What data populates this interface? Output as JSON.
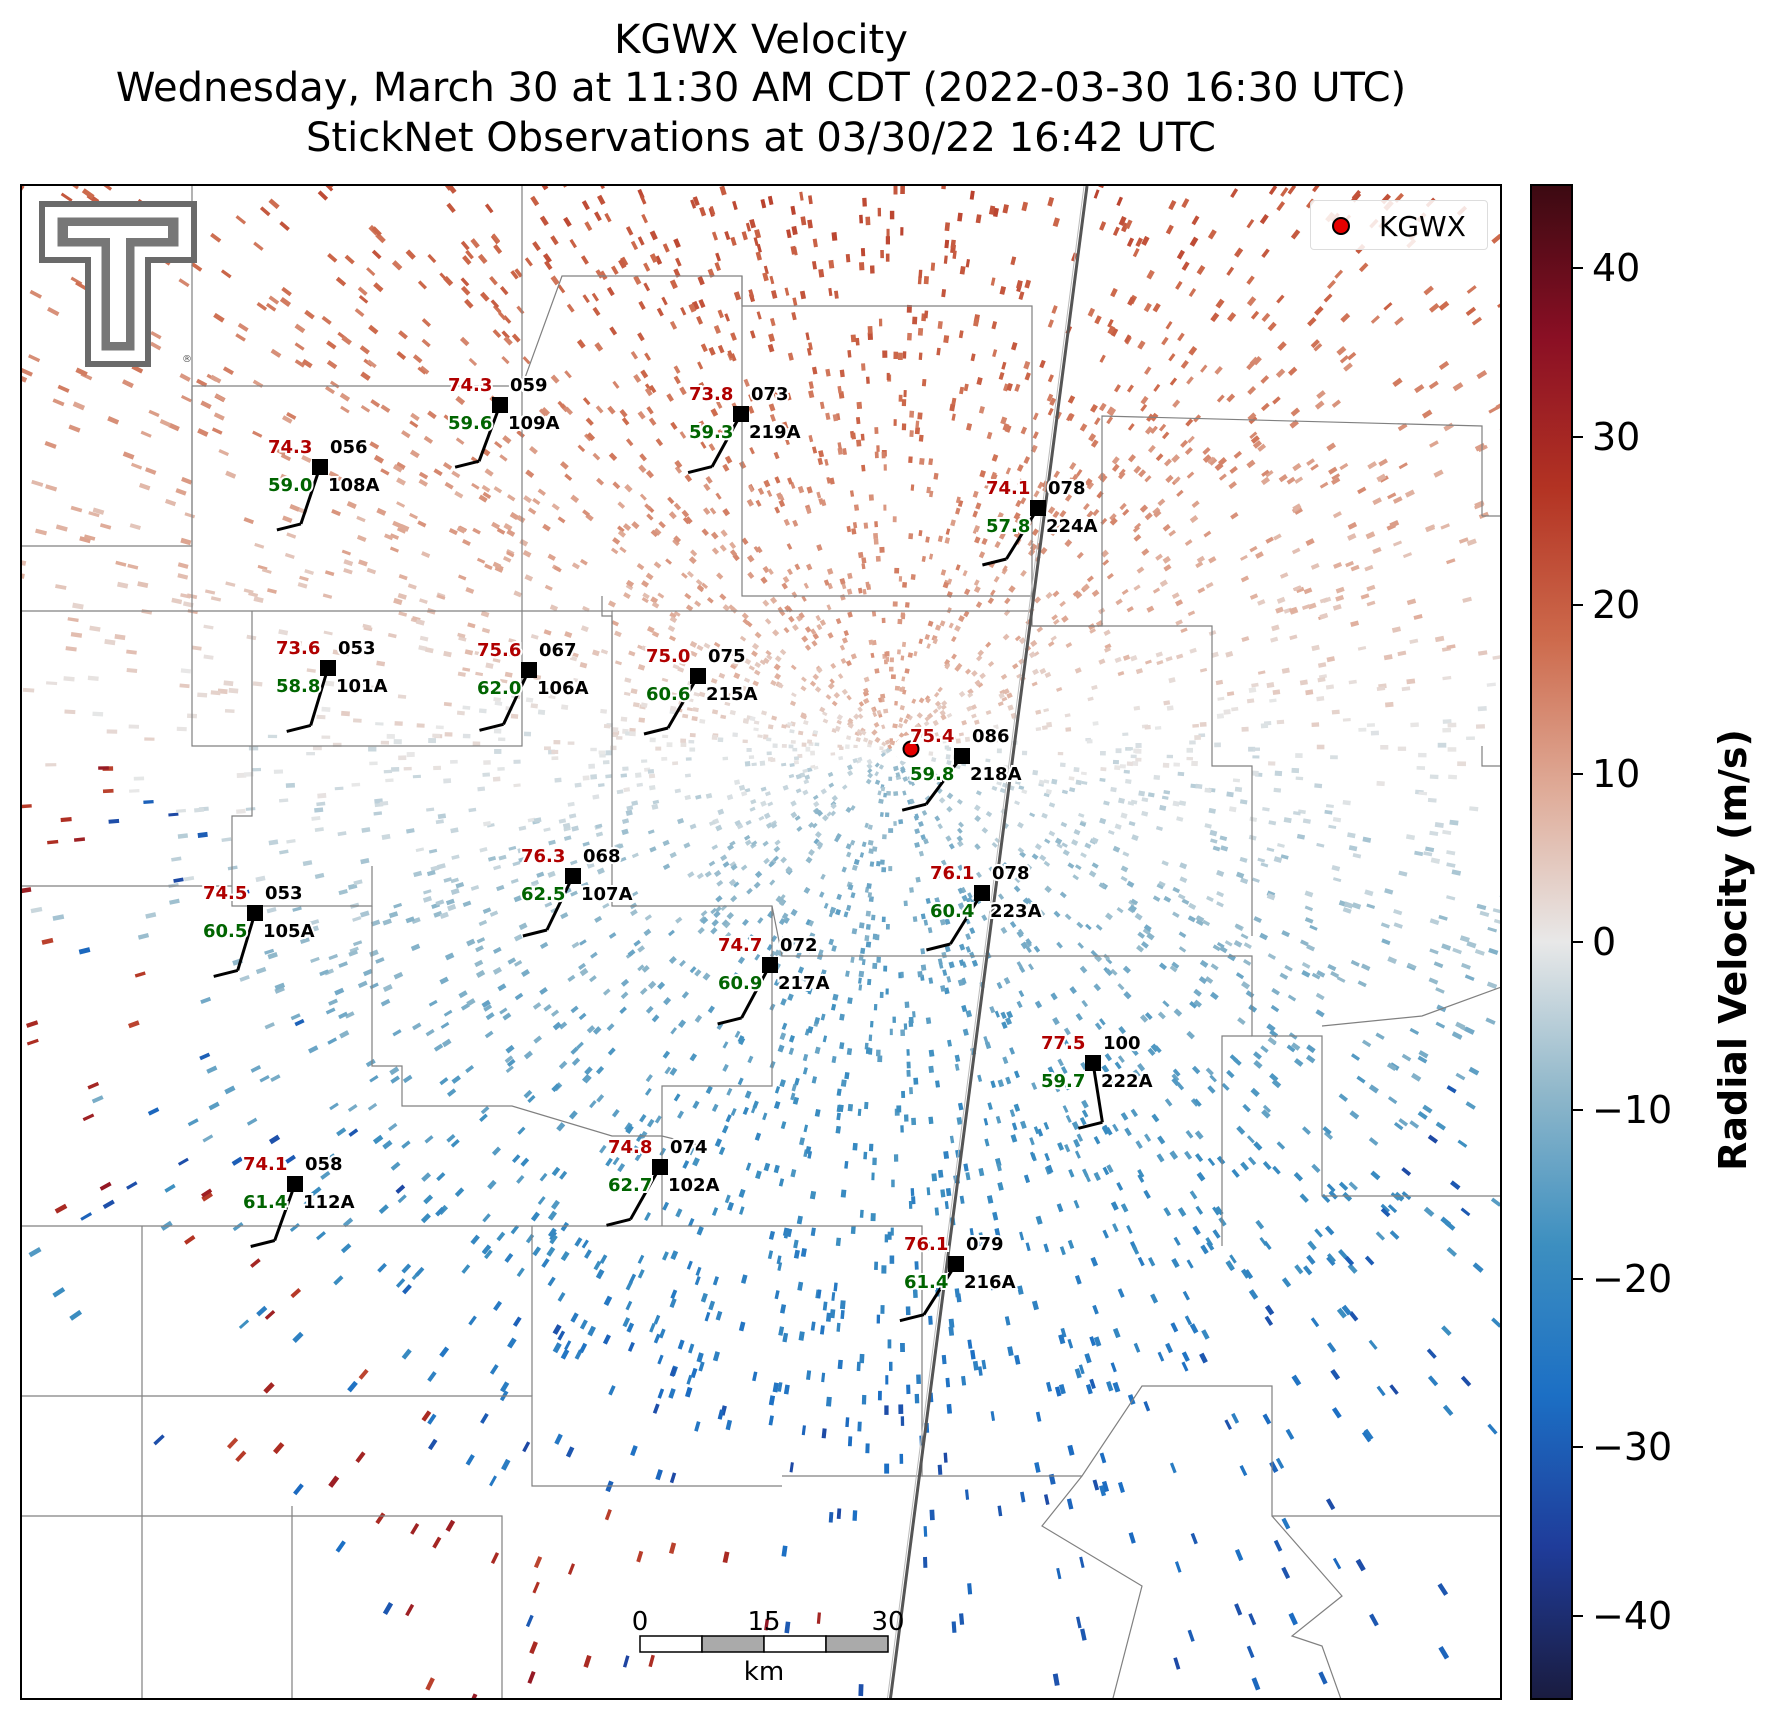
{
  "title": {
    "line1": "KGWX Velocity",
    "line2": "Wednesday, March 30 at 11:30 AM CDT (2022-03-30 16:30 UTC)",
    "line3": "StickNet Observations at 03/30/22 16:42 UTC"
  },
  "legend": {
    "label": "KGWX",
    "marker_color": "#e60000"
  },
  "colorbar": {
    "title": "Radial Velocity (m/s)",
    "min": -45,
    "max": 45,
    "ticks": [
      40,
      30,
      20,
      10,
      0,
      -10,
      -20,
      -30,
      -40
    ],
    "tick_labels": [
      "40",
      "30",
      "20",
      "10",
      "0",
      "−10",
      "−20",
      "−30",
      "−40"
    ],
    "colors": [
      "#1a1c40",
      "#1f3c9a",
      "#1c6fc4",
      "#3d8fc0",
      "#8fb7ca",
      "#e8e8e8",
      "#dfab98",
      "#cd6a4c",
      "#b33323",
      "#8a0f24",
      "#3c0a12"
    ]
  },
  "scale_bar": {
    "ticks": [
      "0",
      "15",
      "30"
    ],
    "unit": "km"
  },
  "logo": {
    "name": "Texas Tech Double T",
    "mark": "®"
  },
  "stations": [
    {
      "id": "109A",
      "temp": "74.3",
      "dew": "59.6",
      "dir": "059"
    },
    {
      "id": "219A",
      "temp": "73.8",
      "dew": "59.3",
      "dir": "073"
    },
    {
      "id": "108A",
      "temp": "74.3",
      "dew": "59.0",
      "dir": "056"
    },
    {
      "id": "224A",
      "temp": "74.1",
      "dew": "57.8",
      "dir": "078"
    },
    {
      "id": "101A",
      "temp": "73.6",
      "dew": "58.8",
      "dir": "053"
    },
    {
      "id": "106A",
      "temp": "75.6",
      "dew": "62.0",
      "dir": "067"
    },
    {
      "id": "215A",
      "temp": "75.0",
      "dew": "60.6",
      "dir": "075"
    },
    {
      "id": "218A",
      "temp": "75.4",
      "dew": "59.8",
      "dir": "086"
    },
    {
      "id": "107A",
      "temp": "76.3",
      "dew": "62.5",
      "dir": "068"
    },
    {
      "id": "105A",
      "temp": "74.5",
      "dew": "60.5",
      "dir": "053"
    },
    {
      "id": "223A",
      "temp": "76.1",
      "dew": "60.4",
      "dir": "078"
    },
    {
      "id": "217A",
      "temp": "74.7",
      "dew": "60.9",
      "dir": "072"
    },
    {
      "id": "222A",
      "temp": "77.5",
      "dew": "59.7",
      "dir": "100"
    },
    {
      "id": "102A",
      "temp": "74.8",
      "dew": "62.7",
      "dir": "074"
    },
    {
      "id": "112A",
      "temp": "74.1",
      "dew": "61.4",
      "dir": "058"
    },
    {
      "id": "216A",
      "temp": "76.1",
      "dew": "61.4",
      "dir": "079"
    }
  ],
  "colors": {
    "temp": "#b00000",
    "dew": "#006400",
    "station": "#000000"
  }
}
